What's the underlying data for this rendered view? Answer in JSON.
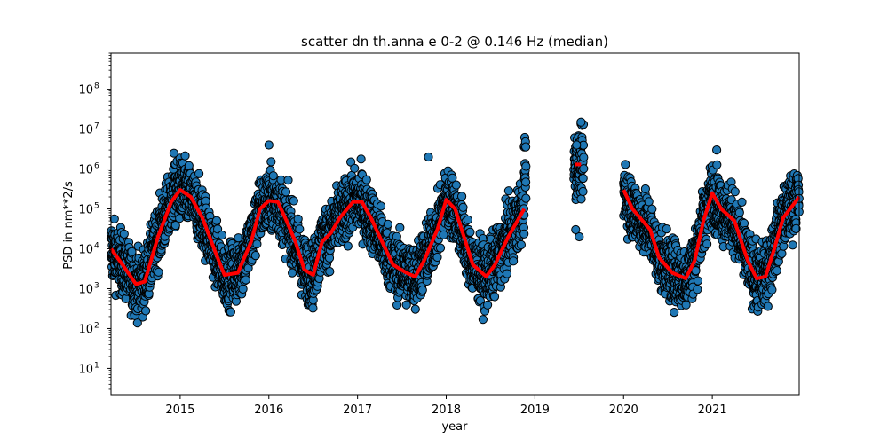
{
  "chart_data": {
    "type": "scatter",
    "title": "scatter dn th.anna e 0-2 @ 0.146 Hz (median)",
    "xlabel": "year",
    "ylabel": "PSD in nm**2/s",
    "yscale": "log",
    "xlim": [
      2014.22,
      2021.98
    ],
    "ylim": [
      2.2,
      800000000
    ],
    "x_ticks": [
      2015,
      2016,
      2017,
      2018,
      2019,
      2020,
      2021
    ],
    "x_tick_labels": [
      "2015",
      "2016",
      "2017",
      "2018",
      "2019",
      "2020",
      "2021"
    ],
    "y_ticks": [
      10,
      100,
      1000,
      10000,
      100000,
      1000000,
      10000000,
      100000000
    ],
    "y_tick_exponents": [
      "1",
      "2",
      "3",
      "4",
      "5",
      "6",
      "7",
      "8"
    ],
    "y_tick_base": "10",
    "grid": false,
    "legend": "none",
    "colors": {
      "points": "#1f77b4",
      "point_edge": "#000000",
      "median": "#ff0000"
    },
    "daily_series": {
      "name": "",
      "segments": [
        [
          2014.22,
          2018.9
        ],
        [
          2019.44,
          2019.55
        ],
        [
          2020.0,
          2021.98
        ]
      ],
      "spread_log10": 0.7,
      "outliers": [
        {
          "x": 2016.0,
          "y": 4000000
        },
        {
          "x": 2014.93,
          "y": 2500000
        },
        {
          "x": 2019.52,
          "y": 15000000
        },
        {
          "x": 2019.47,
          "y": 4000000
        },
        {
          "x": 2019.5,
          "y": 20000
        },
        {
          "x": 2019.46,
          "y": 30000
        },
        {
          "x": 2021.05,
          "y": 3000000
        },
        {
          "x": 2020.02,
          "y": 1300000
        },
        {
          "x": 2017.8,
          "y": 2000000
        }
      ]
    },
    "median_series": {
      "name": "",
      "segments": [
        {
          "x": [
            2014.22,
            2014.35,
            2014.5,
            2014.6,
            2014.75,
            2014.9,
            2015.0,
            2015.12,
            2015.25,
            2015.4,
            2015.5,
            2015.65,
            2015.8,
            2015.9,
            2016.0,
            2016.1,
            2016.2,
            2016.3,
            2016.4,
            2016.5,
            2016.6,
            2016.7,
            2016.8,
            2016.95,
            2017.05,
            2017.15,
            2017.25,
            2017.4,
            2017.55,
            2017.65,
            2017.75,
            2017.9,
            2018.0,
            2018.1,
            2018.2,
            2018.3,
            2018.45,
            2018.55,
            2018.7,
            2018.88
          ],
          "y": [
            10000,
            4000,
            1300,
            1500,
            20000,
            150000,
            300000,
            200000,
            60000,
            8000,
            2200,
            2500,
            15000,
            100000,
            160000,
            150000,
            50000,
            15000,
            3000,
            2200,
            15000,
            25000,
            60000,
            150000,
            150000,
            60000,
            20000,
            4000,
            2500,
            2000,
            5000,
            30000,
            170000,
            100000,
            20000,
            4000,
            2000,
            4000,
            20000,
            100000
          ]
        },
        {
          "x": [
            2019.45,
            2019.52
          ],
          "y": [
            1300000,
            1300000
          ]
        },
        {
          "x": [
            2020.0,
            2020.1,
            2020.3,
            2020.4,
            2020.55,
            2020.7,
            2020.8,
            2020.9,
            2021.0,
            2021.1,
            2021.25,
            2021.4,
            2021.5,
            2021.6,
            2021.7,
            2021.8,
            2021.98
          ],
          "y": [
            300000,
            100000,
            30000,
            6000,
            2500,
            1800,
            5000,
            50000,
            250000,
            100000,
            50000,
            5000,
            1800,
            2000,
            10000,
            60000,
            200000
          ]
        }
      ]
    }
  }
}
